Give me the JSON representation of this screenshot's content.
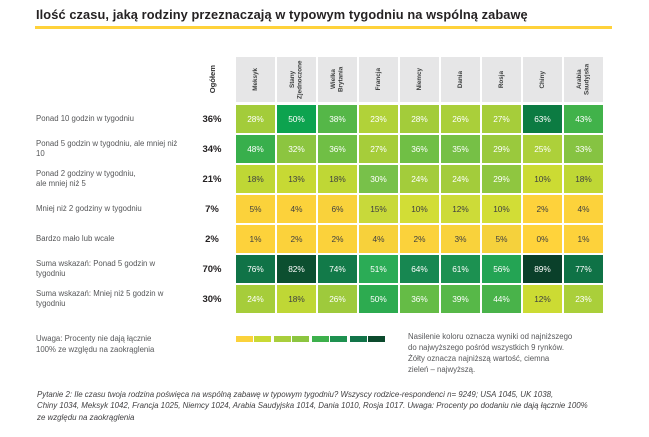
{
  "title": "Ilość czasu, jaką rodziny przeznaczają w typowym tygodniu na wspólną zabawę",
  "colors": {
    "accent": "#FFD23B",
    "header_bg": "#E6E6E7",
    "cell_text_dark": "#3F4041",
    "cell_text_light": "#FFFFFF"
  },
  "table": {
    "ogolem_header": "Ogółem",
    "columns": [
      "Meksyk",
      "Stany Zjednoczone",
      "Wielka Brytania",
      "Francja",
      "Niemcy",
      "Dania",
      "Rosja",
      "Chiny",
      "Arabia Saudyjska"
    ],
    "rows": [
      {
        "label": "Ponad 10 godzin w tygodniu",
        "ogolem": "36%",
        "cells": [
          {
            "v": "28%",
            "bg": "#A3CC3A",
            "fg": "#FFFFFF"
          },
          {
            "v": "50%",
            "bg": "#0DA34F",
            "fg": "#FFFFFF"
          },
          {
            "v": "38%",
            "bg": "#55B748",
            "fg": "#FFFFFF"
          },
          {
            "v": "23%",
            "bg": "#B1D239",
            "fg": "#FFFFFF"
          },
          {
            "v": "28%",
            "bg": "#A3CC3A",
            "fg": "#FFFFFF"
          },
          {
            "v": "26%",
            "bg": "#AACF3A",
            "fg": "#FFFFFF"
          },
          {
            "v": "27%",
            "bg": "#A6CD3A",
            "fg": "#FFFFFF"
          },
          {
            "v": "63%",
            "bg": "#0C7B42",
            "fg": "#FFFFFF"
          },
          {
            "v": "43%",
            "bg": "#41B24A",
            "fg": "#FFFFFF"
          }
        ]
      },
      {
        "label": "Ponad 5 godzin w tygodniu, ale mniej niż 10",
        "ogolem": "34%",
        "cells": [
          {
            "v": "48%",
            "bg": "#38AF4C",
            "fg": "#FFFFFF"
          },
          {
            "v": "32%",
            "bg": "#8CC540",
            "fg": "#FFFFFF"
          },
          {
            "v": "36%",
            "bg": "#70BF45",
            "fg": "#FFFFFF"
          },
          {
            "v": "27%",
            "bg": "#A6CD3A",
            "fg": "#FFFFFF"
          },
          {
            "v": "36%",
            "bg": "#70BF45",
            "fg": "#FFFFFF"
          },
          {
            "v": "35%",
            "bg": "#76C046",
            "fg": "#FFFFFF"
          },
          {
            "v": "29%",
            "bg": "#9AC93D",
            "fg": "#FFFFFF"
          },
          {
            "v": "25%",
            "bg": "#ADD03A",
            "fg": "#FFFFFF"
          },
          {
            "v": "33%",
            "bg": "#86C342",
            "fg": "#FFFFFF"
          }
        ]
      },
      {
        "label": "Ponad 2 godziny w tygodniu,\nale mniej niż 5",
        "ogolem": "21%",
        "cells": [
          {
            "v": "18%",
            "bg": "#BFD735",
            "fg": "#3F4041"
          },
          {
            "v": "13%",
            "bg": "#C7D934",
            "fg": "#3F4041"
          },
          {
            "v": "18%",
            "bg": "#BFD735",
            "fg": "#3F4041"
          },
          {
            "v": "30%",
            "bg": "#78C14A",
            "fg": "#FFFFFF"
          },
          {
            "v": "24%",
            "bg": "#A3CC3B",
            "fg": "#FFFFFF"
          },
          {
            "v": "24%",
            "bg": "#A3CC3B",
            "fg": "#FFFFFF"
          },
          {
            "v": "29%",
            "bg": "#8FC640",
            "fg": "#FFFFFF"
          },
          {
            "v": "10%",
            "bg": "#CCDB33",
            "fg": "#3F4041"
          },
          {
            "v": "18%",
            "bg": "#BFD735",
            "fg": "#3F4041"
          }
        ]
      },
      {
        "label": "Mniej niż 2 godziny w tygodniu",
        "ogolem": "7%",
        "cells": [
          {
            "v": "5%",
            "bg": "#FBD23B",
            "fg": "#3F4041"
          },
          {
            "v": "4%",
            "bg": "#FCD23B",
            "fg": "#3F4041"
          },
          {
            "v": "6%",
            "bg": "#F9D23B",
            "fg": "#3F4041"
          },
          {
            "v": "15%",
            "bg": "#C8D93A",
            "fg": "#3F4041"
          },
          {
            "v": "10%",
            "bg": "#D2DD36",
            "fg": "#3F4041"
          },
          {
            "v": "12%",
            "bg": "#CDDB38",
            "fg": "#3F4041"
          },
          {
            "v": "10%",
            "bg": "#D2DD36",
            "fg": "#3F4041"
          },
          {
            "v": "2%",
            "bg": "#FED23B",
            "fg": "#3F4041"
          },
          {
            "v": "4%",
            "bg": "#FCD23B",
            "fg": "#3F4041"
          }
        ]
      },
      {
        "label": "Bardzo mało lub wcale",
        "ogolem": "2%",
        "cells": [
          {
            "v": "1%",
            "bg": "#FDD23B",
            "fg": "#3F4041"
          },
          {
            "v": "2%",
            "bg": "#FBD23B",
            "fg": "#3F4041"
          },
          {
            "v": "2%",
            "bg": "#FBD23B",
            "fg": "#3F4041"
          },
          {
            "v": "4%",
            "bg": "#F7D13B",
            "fg": "#3F4041"
          },
          {
            "v": "2%",
            "bg": "#FBD23B",
            "fg": "#3F4041"
          },
          {
            "v": "3%",
            "bg": "#F9D23B",
            "fg": "#3F4041"
          },
          {
            "v": "5%",
            "bg": "#F5D13C",
            "fg": "#3F4041"
          },
          {
            "v": "0%",
            "bg": "#FFD33B",
            "fg": "#3F4041"
          },
          {
            "v": "1%",
            "bg": "#FDD23B",
            "fg": "#3F4041"
          }
        ]
      },
      {
        "label": "Suma wskazań: Ponad 5 godzin w tygodniu",
        "ogolem": "70%",
        "cells": [
          {
            "v": "76%",
            "bg": "#107347",
            "fg": "#FFFFFF"
          },
          {
            "v": "82%",
            "bg": "#0C4F30",
            "fg": "#FFFFFF"
          },
          {
            "v": "74%",
            "bg": "#127A49",
            "fg": "#FFFFFF"
          },
          {
            "v": "51%",
            "bg": "#2BAC56",
            "fg": "#FFFFFF"
          },
          {
            "v": "64%",
            "bg": "#178751",
            "fg": "#FFFFFF"
          },
          {
            "v": "61%",
            "bg": "#1C9151",
            "fg": "#FFFFFF"
          },
          {
            "v": "56%",
            "bg": "#24A454",
            "fg": "#FFFFFF"
          },
          {
            "v": "89%",
            "bg": "#0A402A",
            "fg": "#FFFFFF"
          },
          {
            "v": "77%",
            "bg": "#0F7246",
            "fg": "#FFFFFF"
          }
        ]
      },
      {
        "label": "Suma wskazań: Mniej niż 5 godzin w\ntygodniu",
        "ogolem": "30%",
        "cells": [
          {
            "v": "24%",
            "bg": "#A6CD3A",
            "fg": "#FFFFFF"
          },
          {
            "v": "18%",
            "bg": "#BFD735",
            "fg": "#3F4041"
          },
          {
            "v": "26%",
            "bg": "#9ECA3C",
            "fg": "#FFFFFF"
          },
          {
            "v": "50%",
            "bg": "#2DAB50",
            "fg": "#FFFFFF"
          },
          {
            "v": "36%",
            "bg": "#65BC46",
            "fg": "#FFFFFF"
          },
          {
            "v": "39%",
            "bg": "#57B848",
            "fg": "#FFFFFF"
          },
          {
            "v": "44%",
            "bg": "#49B34A",
            "fg": "#FFFFFF"
          },
          {
            "v": "12%",
            "bg": "#CCDB33",
            "fg": "#3F4041"
          },
          {
            "v": "23%",
            "bg": "#AACF3A",
            "fg": "#FFFFFF"
          }
        ]
      }
    ]
  },
  "legend": {
    "swatches": [
      "#FBD23B",
      "#C9D934",
      "#A9CE3C",
      "#8CC540",
      "#3DB04C",
      "#1E9150",
      "#127449",
      "#0C4A2D"
    ]
  },
  "notes": {
    "left": "Uwaga: Procenty nie dają łącznie\n100% ze względu na zaokrąglenia",
    "right": "Nasilenie koloru oznacza wyniki od najniższego\ndo najwyższego pośród wszystkich 9 rynków.\nŻółty oznacza najniższą wartość, ciemna\nzieleń – najwyższą."
  },
  "footnote": "Pytanie 2: Ile czasu twoja rodzina poświęca na wspólną zabawę w typowym tygodniu? Wszyscy rodzice-respondenci n= 9249; USA 1045, UK 1038,\nChiny 1034, Meksyk 1042, Francja 1025, Niemcy 1024, Arabia Saudyjska 1014, Dania 1010, Rosja 1017. Uwaga: Procenty po dodaniu nie dają łącznie 100%\nze względu na zaokrąglenia",
  "chart_data": {
    "type": "heatmap",
    "title": "Ilość czasu, jaką rodziny przeznaczają w typowym tygodniu na wspólną zabawę",
    "unit": "%",
    "columns": [
      "Ogółem",
      "Meksyk",
      "Stany Zjednoczone",
      "Wielka Brytania",
      "Francja",
      "Niemcy",
      "Dania",
      "Rosja",
      "Chiny",
      "Arabia Saudyjska"
    ],
    "rows": [
      "Ponad 10 godzin w tygodniu",
      "Ponad 5 godzin w tygodniu, ale mniej niż 10",
      "Ponad 2 godziny w tygodniu, ale mniej niż 5",
      "Mniej niż 2 godziny w tygodniu",
      "Bardzo mało lub wcale",
      "Suma wskazań: Ponad 5 godzin w tygodniu",
      "Suma wskazań: Mniej niż 5 godzin w tygodniu"
    ],
    "values": [
      [
        36,
        28,
        50,
        38,
        23,
        28,
        26,
        27,
        63,
        43
      ],
      [
        34,
        48,
        32,
        36,
        27,
        36,
        35,
        29,
        25,
        33
      ],
      [
        21,
        18,
        13,
        18,
        30,
        24,
        24,
        29,
        10,
        18
      ],
      [
        7,
        5,
        4,
        6,
        15,
        10,
        12,
        10,
        2,
        4
      ],
      [
        2,
        1,
        2,
        2,
        4,
        2,
        3,
        5,
        0,
        1
      ],
      [
        70,
        76,
        82,
        74,
        51,
        64,
        61,
        56,
        89,
        77
      ],
      [
        30,
        24,
        18,
        26,
        50,
        36,
        39,
        44,
        12,
        23
      ]
    ],
    "legend_position": "bottom",
    "color_scale": "yellow (lowest) to dark green (highest), ranked within each row across the 9 markets"
  }
}
